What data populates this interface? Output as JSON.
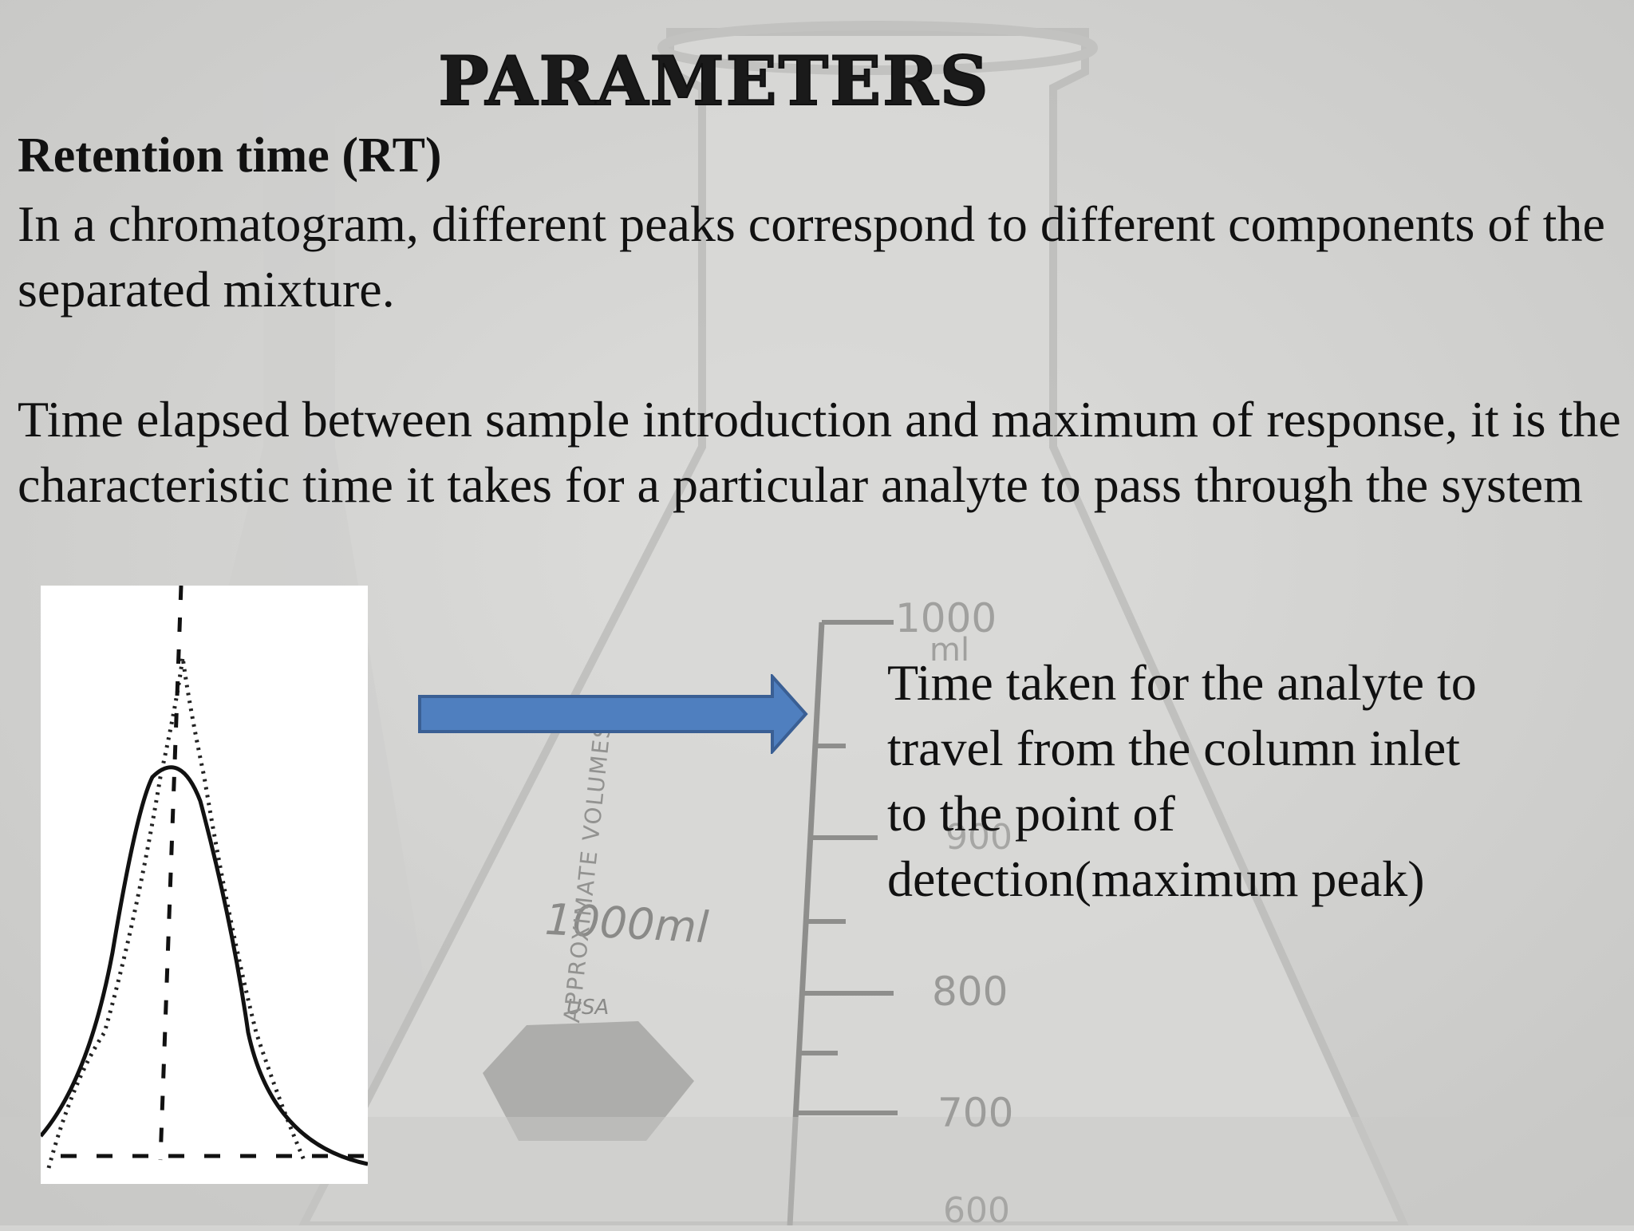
{
  "slide": {
    "title": "Parameters",
    "heading": "Retention time (RT)",
    "paragraph1": "In a chromatogram, different peaks  correspond to different components of the separated mixture.",
    "paragraph2": "Time elapsed between sample introduction and maximum of response, it is the characteristic time it takes for a particular analyte to pass through the system",
    "caption": "Time taken for the analyte to travel from the column inlet to the point of detection(maximum peak)"
  },
  "background": {
    "flask_marks": [
      "1000",
      "ml",
      "900",
      "800",
      "700",
      "600"
    ],
    "flask_label": "1000ml",
    "flask_origin": "USA",
    "flask_side_text": "APPROXIMATE VOLUMES"
  },
  "colors": {
    "arrow_fill": "#4f7fbf",
    "arrow_stroke": "#3a5f94",
    "background": "#d4d4d2"
  },
  "icons": {
    "arrow": "right-arrow-icon",
    "figure": "chromatogram-peak-figure"
  }
}
